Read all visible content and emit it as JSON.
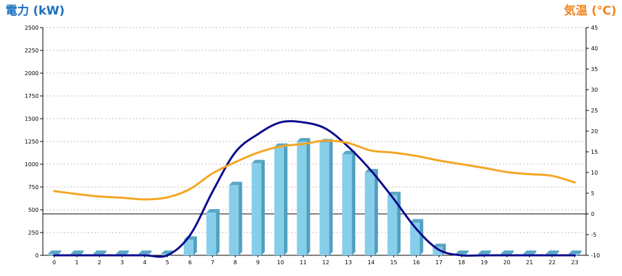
{
  "chart_data": {
    "type": "bar",
    "left_axis_title": "電力 (kW)",
    "right_axis_title": "気温 (℃)",
    "categories": [
      "0",
      "1",
      "2",
      "3",
      "4",
      "5",
      "6",
      "7",
      "8",
      "9",
      "10",
      "11",
      "12",
      "13",
      "14",
      "15",
      "16",
      "17",
      "18",
      "19",
      "20",
      "21",
      "22",
      "23"
    ],
    "y_left_ticks": [
      "0",
      "250",
      "500",
      "750",
      "1000",
      "1250",
      "1500",
      "1750",
      "2000",
      "2250",
      "2500"
    ],
    "y_right_ticks": [
      "-10",
      "-5",
      "0",
      "5",
      "10",
      "15",
      "20",
      "25",
      "30",
      "35",
      "40",
      "45"
    ],
    "ylim_left": [
      0,
      2500
    ],
    "ylim_right": [
      -10,
      45
    ],
    "grid": true,
    "series": [
      {
        "kind": "bar",
        "axis": "left",
        "color": "#87ceeb",
        "values": [
          0,
          0,
          0,
          0,
          0,
          0,
          170,
          470,
          770,
          1010,
          1190,
          1250,
          1240,
          1110,
          910,
          660,
          360,
          90,
          0,
          0,
          0,
          0,
          0,
          0
        ]
      },
      {
        "kind": "line",
        "axis": "left",
        "color": "#0a0a8c",
        "values": [
          0,
          0,
          0,
          0,
          0,
          0,
          220,
          700,
          1130,
          1330,
          1460,
          1460,
          1390,
          1190,
          930,
          620,
          290,
          60,
          0,
          0,
          0,
          0,
          0,
          0
        ]
      },
      {
        "kind": "line",
        "axis": "right",
        "color": "#f5a623",
        "values": [
          5.5,
          4.8,
          4.2,
          3.9,
          3.5,
          4.0,
          6.0,
          9.8,
          12.5,
          14.8,
          16.3,
          16.9,
          17.7,
          17.1,
          15.3,
          14.8,
          14.0,
          12.9,
          12.0,
          11.1,
          10.1,
          9.6,
          9.2,
          7.6
        ]
      }
    ]
  }
}
